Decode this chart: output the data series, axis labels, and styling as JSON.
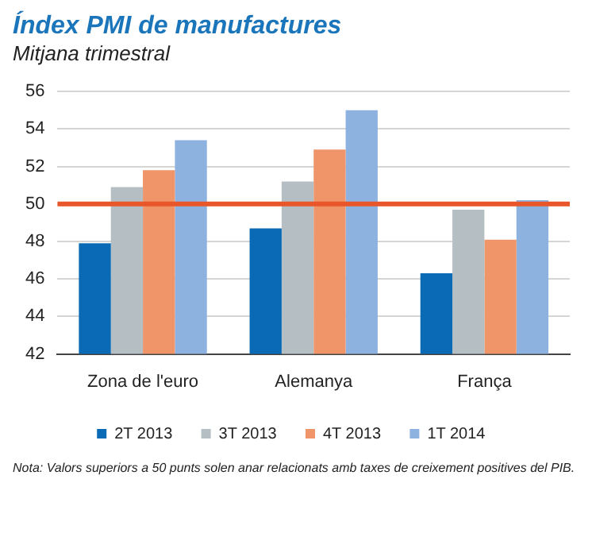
{
  "chart_data": {
    "type": "bar",
    "title": "Índex PMI de manufactures",
    "subtitle": "Mitjana trimestral",
    "categories": [
      "Zona de l'euro",
      "Alemanya",
      "França"
    ],
    "series": [
      {
        "name": "2T 2013",
        "color": "#0a6ab5",
        "values": [
          47.9,
          48.7,
          46.3
        ]
      },
      {
        "name": "3T 2013",
        "color": "#b5bfc3",
        "values": [
          50.9,
          51.2,
          49.7
        ]
      },
      {
        "name": "4T 2013",
        "color": "#f0956a",
        "values": [
          51.8,
          52.9,
          48.1
        ]
      },
      {
        "name": "1T 2014",
        "color": "#8eb2e0",
        "values": [
          53.4,
          55.0,
          50.2
        ]
      }
    ],
    "ylim": [
      42,
      56
    ],
    "yticks": [
      42,
      44,
      46,
      48,
      50,
      52,
      54,
      56
    ],
    "grid": "y",
    "legend": "bottom",
    "ref_lines": [
      {
        "axis": "y",
        "value": 50,
        "color": "#e8562a"
      }
    ],
    "annotations": [
      "Nota: Valors superiors a 50 punts solen anar relacionats amb taxes de creixement positives del PIB."
    ]
  }
}
